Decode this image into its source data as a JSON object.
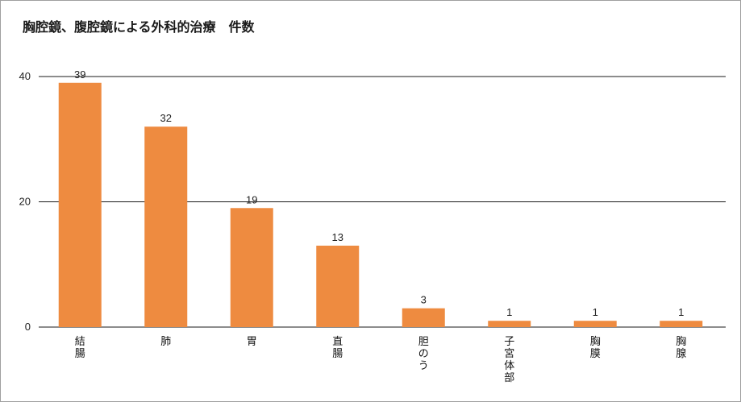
{
  "chart_data": {
    "type": "bar",
    "title": "胸腔鏡、腹腔鏡による外科的治療　件数",
    "categories": [
      "結腸",
      "肺",
      "胃",
      "直腸",
      "胆のう",
      "子宮体部",
      "胸膜",
      "胸腺"
    ],
    "values": [
      39,
      32,
      19,
      13,
      3,
      1,
      1,
      1
    ],
    "xlabel": "",
    "ylabel": "",
    "ylim": [
      0,
      40
    ],
    "yticks": [
      0,
      20,
      40
    ],
    "grid": true,
    "legend": "none",
    "bar_color": "#ee8b40",
    "data_labels": true
  }
}
